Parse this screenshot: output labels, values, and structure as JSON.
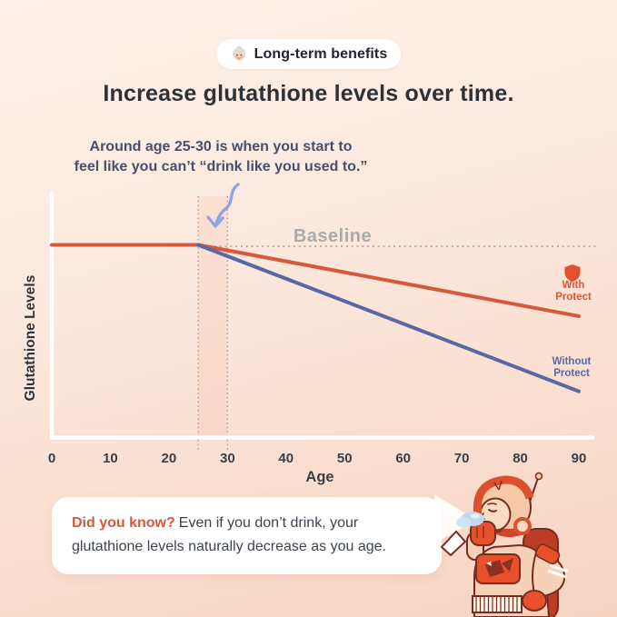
{
  "badge": {
    "icon": "old-woman-emoji",
    "label": "Long-term benefits"
  },
  "title": "Increase glutathione levels over time.",
  "annotation": {
    "line1": "Around age 25-30 is when you start to",
    "line2": "feel like you can’t “drink like you used to.”"
  },
  "chart_data": {
    "type": "line",
    "title": "",
    "xlabel": "Age",
    "ylabel": "Glutathione Levels",
    "x_ticks": [
      0,
      10,
      20,
      30,
      40,
      50,
      60,
      70,
      80,
      90
    ],
    "xlim": [
      0,
      90
    ],
    "grid": false,
    "baseline": {
      "label": "Baseline",
      "value": 100
    },
    "highlight_band": {
      "x_start": 25,
      "x_end": 30
    },
    "annotation_arrow_target_age": 25,
    "series": [
      {
        "name": "With Protect",
        "color": "#D7583B",
        "x": [
          0,
          25,
          90
        ],
        "y": [
          100,
          100,
          63
        ]
      },
      {
        "name": "Without Protect",
        "color": "#5A67A5",
        "x": [
          25,
          90
        ],
        "y": [
          100,
          24
        ]
      }
    ],
    "legend_position": "inline-right"
  },
  "legend": {
    "with_protect": {
      "icon": "shield-icon",
      "line1": "With",
      "line2": "Protect"
    },
    "without_protect": {
      "line1": "Without",
      "line2": "Protect"
    }
  },
  "did_you_know": {
    "highlight": "Did you know?",
    "body": "Even if you don’t drink, your glutathione levels naturally decrease as you age."
  },
  "colors": {
    "accent_orange": "#D7583B",
    "accent_blue": "#5A67A5",
    "arrow_blue": "#8EA5E6",
    "baseline_gray": "#9E9E9E",
    "axis_white": "#FFFFFF",
    "title_dark": "#2D3138",
    "annotation_navy": "#46506C",
    "card_text": "#3C4450",
    "background_top": "#FDF1E9",
    "background_bottom": "#F7D4C2"
  }
}
